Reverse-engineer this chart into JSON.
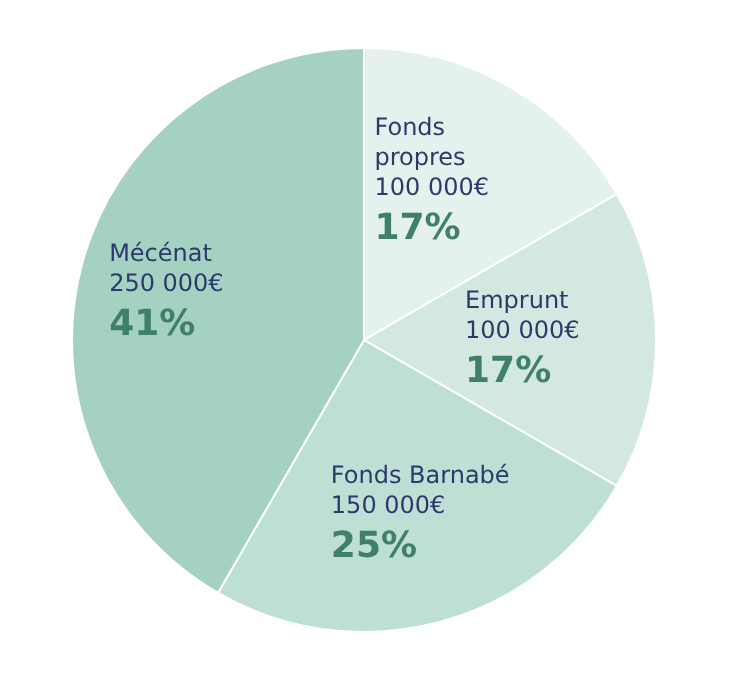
{
  "chart_data": {
    "type": "pie",
    "categories": [
      "Fonds propres",
      "Emprunt",
      "Fonds Barnabé",
      "Mécénat"
    ],
    "values": [
      100000,
      100000,
      150000,
      250000
    ],
    "colors": [
      "#e4f1ed",
      "#d3e8e1",
      "#bddfd4",
      "#a5d1c3"
    ],
    "value_labels": [
      "100 000€",
      "100 000€",
      "150 000€",
      "250 000€"
    ],
    "annotations": [
      {
        "text": "17%",
        "x": "Fonds propres"
      },
      {
        "text": "17%",
        "x": "Emprunt"
      },
      {
        "text": "25%",
        "x": "Fonds Barnabé"
      },
      {
        "text": "41%",
        "x": "Mécénat"
      }
    ]
  }
}
